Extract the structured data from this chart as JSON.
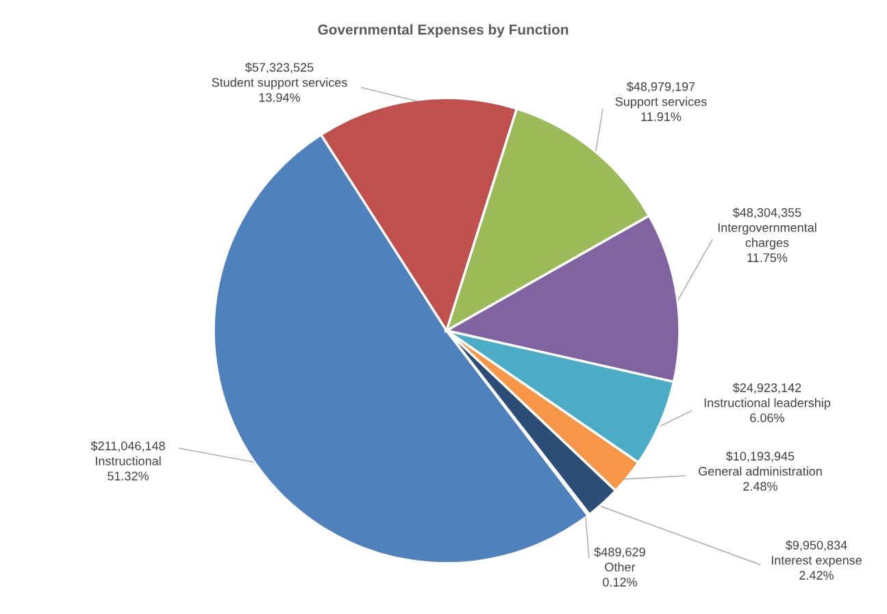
{
  "chart_data": {
    "type": "pie",
    "title": "Governmental Expenses by Function",
    "categories": [
      "Instructional",
      "Student support services",
      "Support services",
      "Intergovernmental charges",
      "Instructional leadership",
      "General administration",
      "Interest expense",
      "Other"
    ],
    "values": [
      211046148,
      57323525,
      48979197,
      48304355,
      24923142,
      10193945,
      9950834,
      489629
    ],
    "colors": [
      "#4f81bd",
      "#c0504d",
      "#9bbb59",
      "#8064a2",
      "#4bacc6",
      "#f79646",
      "#2c4d75",
      "#772c2a"
    ],
    "value_labels": [
      "$211,046,148",
      "$57,323,525",
      "$48,979,197",
      "$48,304,355",
      "$24,923,142",
      "$10,193,945",
      "$9,950,834",
      "$489,629"
    ],
    "annotations": [
      "51.32%",
      "13.94%",
      "11.91%",
      "11.75%",
      "6.06%",
      "2.48%",
      "2.42%",
      "0.12%"
    ],
    "legend": false
  }
}
